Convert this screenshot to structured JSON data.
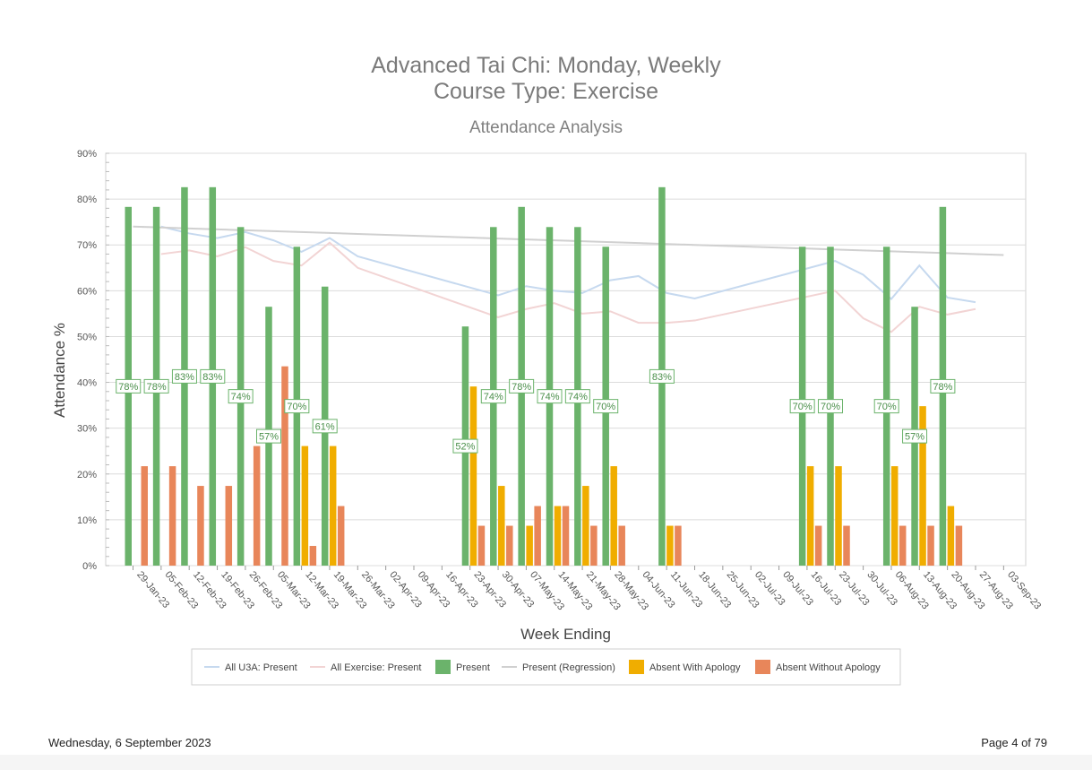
{
  "report": {
    "title_line1": "Advanced Tai Chi: Monday, Weekly",
    "title_line2": "Course Type: Exercise"
  },
  "footer": {
    "date": "Wednesday, 6 September 2023",
    "page": "Page 4 of 79"
  },
  "chart_data": {
    "type": "bar",
    "title": "Attendance Analysis",
    "xlabel": "Week Ending",
    "ylabel": "Attendance %",
    "ylim": [
      0,
      90
    ],
    "yticks": [
      "0%",
      "10%",
      "20%",
      "30%",
      "40%",
      "50%",
      "60%",
      "70%",
      "80%",
      "90%"
    ],
    "grid": true,
    "legend_position": "bottom",
    "categories": [
      "29-Jan-23",
      "05-Feb-23",
      "12-Feb-23",
      "19-Feb-23",
      "26-Feb-23",
      "05-Mar-23",
      "12-Mar-23",
      "19-Mar-23",
      "26-Mar-23",
      "02-Apr-23",
      "09-Apr-23",
      "16-Apr-23",
      "23-Apr-23",
      "30-Apr-23",
      "07-May-23",
      "14-May-23",
      "21-May-23",
      "28-May-23",
      "04-Jun-23",
      "11-Jun-23",
      "18-Jun-23",
      "25-Jun-23",
      "02-Jul-23",
      "09-Jul-23",
      "16-Jul-23",
      "23-Jul-23",
      "30-Jul-23",
      "06-Aug-23",
      "13-Aug-23",
      "20-Aug-23",
      "27-Aug-23",
      "03-Sep-23"
    ],
    "series": [
      {
        "name": "Present",
        "kind": "bar",
        "color": "#6bb36b",
        "values": [
          78.3,
          78.3,
          82.6,
          82.6,
          73.9,
          56.5,
          69.6,
          60.9,
          null,
          null,
          null,
          null,
          52.2,
          73.9,
          78.3,
          73.9,
          73.9,
          69.6,
          null,
          82.6,
          null,
          null,
          null,
          null,
          69.6,
          69.6,
          null,
          69.6,
          56.5,
          78.3,
          null,
          null
        ],
        "labels": [
          "78%",
          "78%",
          "83%",
          "83%",
          "74%",
          "57%",
          "70%",
          "61%",
          null,
          null,
          null,
          null,
          "52%",
          "74%",
          "78%",
          "74%",
          "74%",
          "70%",
          null,
          "83%",
          null,
          null,
          null,
          null,
          "70%",
          "70%",
          null,
          "70%",
          "57%",
          "78%",
          null,
          null
        ]
      },
      {
        "name": "Absent With Apology",
        "kind": "bar",
        "color": "#f0ad00",
        "values": [
          0,
          0,
          0,
          0,
          0,
          0,
          26.1,
          26.1,
          null,
          null,
          null,
          null,
          39.1,
          17.4,
          8.7,
          13.0,
          17.4,
          21.7,
          null,
          8.7,
          null,
          null,
          null,
          null,
          21.7,
          21.7,
          null,
          21.7,
          34.8,
          13.0,
          null,
          null
        ]
      },
      {
        "name": "Absent Without Apology",
        "kind": "bar",
        "color": "#e8865a",
        "values": [
          21.7,
          21.7,
          17.4,
          17.4,
          26.1,
          43.5,
          4.3,
          13.0,
          null,
          null,
          null,
          null,
          8.7,
          8.7,
          13.0,
          13.0,
          8.7,
          8.7,
          null,
          8.7,
          null,
          null,
          null,
          null,
          8.7,
          8.7,
          null,
          8.7,
          8.7,
          8.7,
          null,
          null
        ]
      },
      {
        "name": "All U3A: Present",
        "kind": "line",
        "color": "#c6d9ef",
        "values": [
          null,
          74.0,
          72.5,
          71.5,
          72.8,
          71.0,
          68.5,
          71.5,
          67.5,
          null,
          null,
          null,
          null,
          59.0,
          61.0,
          60.0,
          59.5,
          62.3,
          63.2,
          59.5,
          58.3,
          null,
          null,
          null,
          null,
          66.5,
          63.5,
          58.2,
          65.5,
          58.5,
          57.5,
          null
        ]
      },
      {
        "name": "All Exercise: Present",
        "kind": "line",
        "color": "#f2d4d4",
        "values": [
          null,
          68.0,
          68.8,
          67.5,
          69.5,
          66.5,
          65.5,
          70.5,
          65.0,
          null,
          null,
          null,
          null,
          54.2,
          56.0,
          57.3,
          55.0,
          55.5,
          53.0,
          53.0,
          53.5,
          null,
          null,
          null,
          null,
          60.0,
          54.0,
          51.0,
          56.5,
          54.8,
          56.0,
          null
        ]
      },
      {
        "name": "Present (Regression)",
        "kind": "line",
        "color": "#d0d0d0",
        "values": [
          74.0,
          73.8,
          73.6,
          73.4,
          73.2,
          73.0,
          72.8,
          72.6,
          72.4,
          72.2,
          72.0,
          71.8,
          71.6,
          71.4,
          71.2,
          71.0,
          70.8,
          70.6,
          70.4,
          70.2,
          70.0,
          69.8,
          69.6,
          69.4,
          69.2,
          69.0,
          68.8,
          68.6,
          68.4,
          68.2,
          68.0,
          67.8
        ]
      }
    ],
    "legend": [
      "All U3A: Present",
      "All Exercise: Present",
      "Present",
      "Present (Regression)",
      "Absent With Apology",
      "Absent Without Apology"
    ]
  }
}
